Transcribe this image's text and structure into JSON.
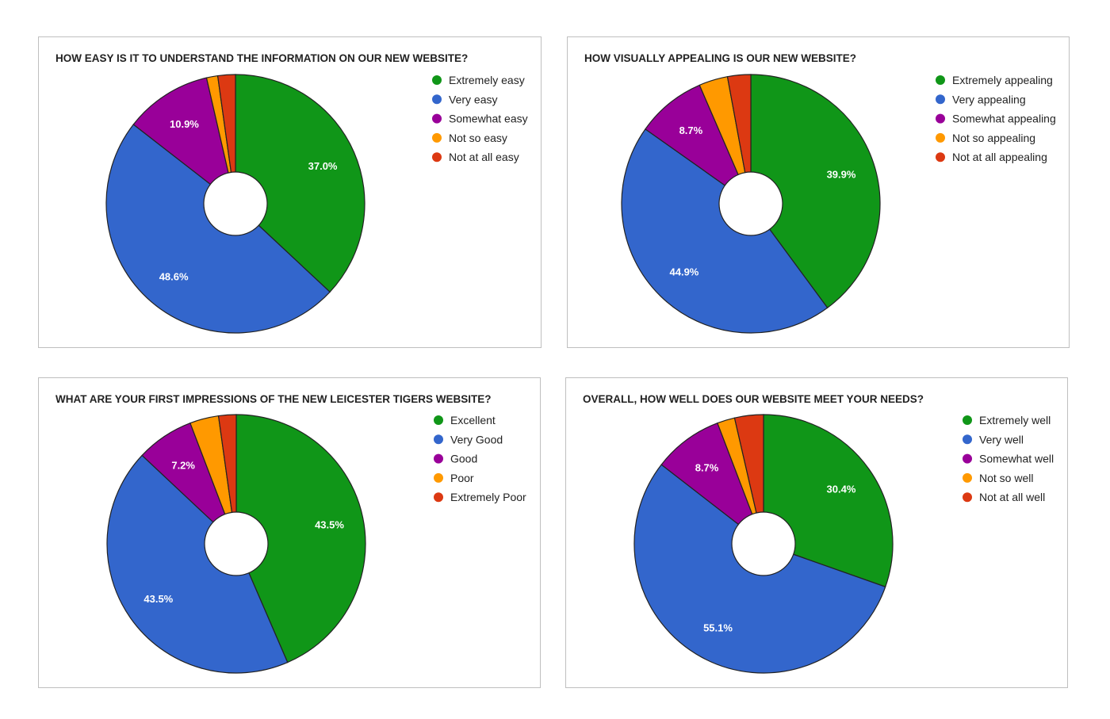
{
  "colors": [
    "#109618",
    "#3366cc",
    "#990099",
    "#ff9900",
    "#dc3912"
  ],
  "chart_data": [
    {
      "type": "pie",
      "title": "HOW EASY IS IT TO UNDERSTAND THE INFORMATION ON OUR NEW WEBSITE?",
      "categories": [
        "Extremely easy",
        "Very easy",
        "Somewhat easy",
        "Not so easy",
        "Not at all easy"
      ],
      "values": [
        37.0,
        48.6,
        10.9,
        1.4,
        2.2
      ],
      "labels": [
        "37.0%",
        "48.6%",
        "10.9%",
        "",
        ""
      ],
      "legend": "right"
    },
    {
      "type": "pie",
      "title": "HOW VISUALLY APPEALING IS OUR NEW WEBSITE?",
      "categories": [
        "Extremely appealing",
        "Very appealing",
        "Somewhat appealing",
        "Not so appealing",
        "Not at all appealing"
      ],
      "values": [
        39.9,
        44.9,
        8.7,
        3.6,
        2.9
      ],
      "labels": [
        "39.9%",
        "44.9%",
        "8.7%",
        "",
        ""
      ],
      "legend": "right"
    },
    {
      "type": "pie",
      "title": "WHAT ARE YOUR FIRST IMPRESSIONS OF THE NEW LEICESTER TIGERS WEBSITE?",
      "categories": [
        "Excellent",
        "Very Good",
        "Good",
        "Poor",
        "Extremely Poor"
      ],
      "values": [
        43.5,
        43.5,
        7.2,
        3.6,
        2.2
      ],
      "labels": [
        "43.5%",
        "43.5%",
        "7.2%",
        "",
        ""
      ],
      "legend": "right"
    },
    {
      "type": "pie",
      "title": "OVERALL, HOW WELL DOES OUR WEBSITE MEET YOUR NEEDS?",
      "categories": [
        "Extremely well",
        "Very well",
        "Somewhat well",
        "Not so well",
        "Not at all well"
      ],
      "values": [
        30.4,
        55.1,
        8.7,
        2.2,
        3.6
      ],
      "labels": [
        "30.4%",
        "55.1%",
        "8.7%",
        "",
        ""
      ],
      "legend": "right"
    }
  ]
}
